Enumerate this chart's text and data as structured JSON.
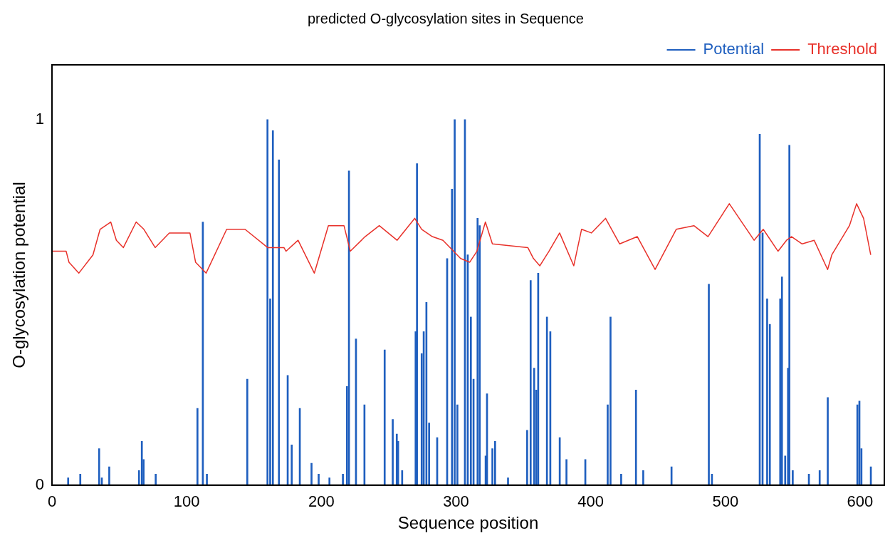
{
  "chart_data": {
    "type": "bar",
    "title": "predicted O-glycosylation sites in Sequence",
    "xlabel": "Sequence position",
    "ylabel": "O-glycosylation potential",
    "xlim": [
      0,
      618
    ],
    "xticks": [
      0,
      100,
      200,
      300,
      400,
      500,
      600
    ],
    "ylim": [
      0,
      1.15
    ],
    "yticks": [
      0,
      1
    ],
    "grid": false,
    "legend": "top right",
    "series": [
      {
        "name": "Potential",
        "color": "#1f5fbf",
        "x": [
          12,
          21,
          35,
          37,
          42.5,
          64.6,
          66.7,
          68,
          77,
          108,
          112,
          115,
          145,
          160,
          162,
          164,
          168.5,
          175,
          178,
          184,
          192.7,
          198,
          206,
          216,
          219,
          220.5,
          225.7,
          232,
          247,
          253,
          256,
          257,
          260,
          270,
          271,
          274.5,
          276,
          278,
          280,
          286,
          293.4,
          297,
          299,
          301,
          306.6,
          308.7,
          311,
          313,
          316,
          317.6,
          322,
          323,
          327,
          329,
          338.6,
          352.8,
          355.4,
          358,
          359.6,
          361,
          367.5,
          370,
          377,
          382,
          396,
          412.6,
          414.7,
          422.6,
          433.6,
          439,
          460,
          487.7,
          490,
          525.5,
          527.6,
          531,
          533,
          540.7,
          542,
          544.4,
          546.5,
          547.5,
          550,
          562,
          570,
          576,
          598,
          599.5,
          601,
          608
        ],
        "values": [
          0.02,
          0.03,
          0.1,
          0.02,
          0.05,
          0.04,
          0.12,
          0.07,
          0.03,
          0.21,
          0.72,
          0.03,
          0.29,
          1.0,
          0.51,
          0.97,
          0.89,
          0.3,
          0.11,
          0.21,
          0.06,
          0.03,
          0.02,
          0.03,
          0.27,
          0.86,
          0.4,
          0.22,
          0.37,
          0.18,
          0.14,
          0.12,
          0.04,
          0.42,
          0.88,
          0.36,
          0.42,
          0.5,
          0.17,
          0.13,
          0.62,
          0.81,
          1.0,
          0.22,
          1.0,
          0.63,
          0.46,
          0.29,
          0.73,
          0.71,
          0.08,
          0.25,
          0.1,
          0.12,
          0.02,
          0.15,
          0.56,
          0.32,
          0.26,
          0.58,
          0.46,
          0.42,
          0.13,
          0.07,
          0.07,
          0.22,
          0.46,
          0.03,
          0.26,
          0.04,
          0.05,
          0.55,
          0.03,
          0.96,
          0.69,
          0.51,
          0.44,
          0.51,
          0.57,
          0.08,
          0.32,
          0.93,
          0.04,
          0.03,
          0.04,
          0.24,
          0.22,
          0.23,
          0.1,
          0.05
        ]
      },
      {
        "name": "Threshold",
        "type": "line",
        "color": "#e8312a",
        "x": [
          0,
          10.5,
          12.6,
          19.9,
          30.4,
          35.7,
          43.6,
          47.8,
          53,
          62.5,
          68.2,
          76.6,
          87.1,
          102.4,
          106.6,
          114.4,
          129.7,
          143.3,
          160.1,
          172.2,
          173.8,
          182.7,
          194.8,
          205.2,
          216.8,
          221.5,
          232.5,
          243,
          256.2,
          269.3,
          274.5,
          282.4,
          290.3,
          303.4,
          310.2,
          315.5,
          321.8,
          327,
          353.3,
          357.5,
          362.2,
          369,
          376.9,
          387.4,
          393.2,
          400.5,
          411,
          421.5,
          434.6,
          447.8,
          463.5,
          476.6,
          487.1,
          502.9,
          521.3,
          528.1,
          539.1,
          545.4,
          549.1,
          557,
          565.9,
          575.9,
          579,
          592.1,
          597.4,
          602.6,
          607.9
        ],
        "values": [
          0.64,
          0.64,
          0.61,
          0.58,
          0.63,
          0.7,
          0.72,
          0.67,
          0.65,
          0.72,
          0.7,
          0.65,
          0.69,
          0.69,
          0.61,
          0.58,
          0.7,
          0.7,
          0.65,
          0.65,
          0.64,
          0.67,
          0.58,
          0.71,
          0.71,
          0.64,
          0.68,
          0.71,
          0.67,
          0.73,
          0.7,
          0.68,
          0.67,
          0.62,
          0.61,
          0.64,
          0.72,
          0.66,
          0.65,
          0.62,
          0.6,
          0.64,
          0.69,
          0.6,
          0.7,
          0.69,
          0.73,
          0.66,
          0.68,
          0.59,
          0.7,
          0.71,
          0.68,
          0.77,
          0.67,
          0.7,
          0.64,
          0.67,
          0.68,
          0.66,
          0.67,
          0.59,
          0.63,
          0.71,
          0.77,
          0.73,
          0.63
        ]
      }
    ]
  }
}
